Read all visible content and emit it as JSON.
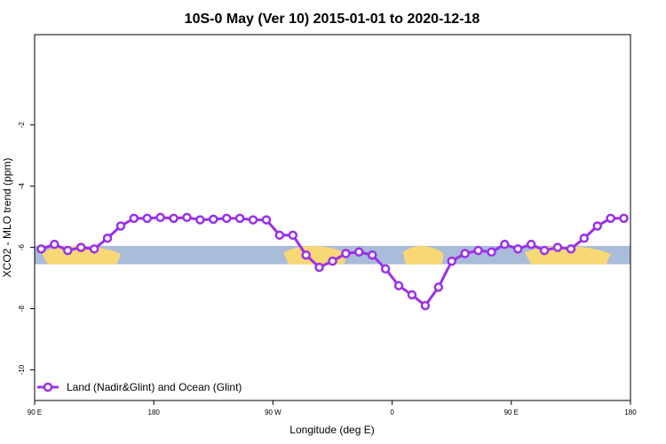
{
  "colors": {
    "series": "#9B30E8",
    "ocean": "#A9BCD9",
    "land": "#F8D775",
    "axis": "#000000"
  },
  "chart_data": {
    "type": "line",
    "title": "10S-0 May (Ver 10)   2015-01-01 to 2020-12-18",
    "xlabel": "Longitude (deg E)",
    "ylabel": "XCO2 - MLO trend (ppm)",
    "xlim": [
      90,
      540
    ],
    "ylim": [
      -11,
      0.95
    ],
    "x_ticks": [
      {
        "value": 90,
        "label": "90 E"
      },
      {
        "value": 180,
        "label": "180"
      },
      {
        "value": 270,
        "label": "90 W"
      },
      {
        "value": 360,
        "label": "0"
      },
      {
        "value": 450,
        "label": "90 E"
      },
      {
        "value": 540,
        "label": "180"
      }
    ],
    "y_ticks": [
      {
        "value": -2,
        "label": "-2"
      },
      {
        "value": -4,
        "label": "-4"
      },
      {
        "value": -6,
        "label": "-6"
      },
      {
        "value": -8,
        "label": "-8"
      },
      {
        "value": -10,
        "label": "-10"
      }
    ],
    "background_band": {
      "ymin": -6.55,
      "ymax": -5.95,
      "description": "map strip 10S-0"
    },
    "land_segments": [
      [
        95,
        155
      ],
      [
        278,
        326
      ],
      [
        368,
        399
      ],
      [
        460,
        525
      ]
    ],
    "series": [
      {
        "name": "Land (Nadir&Glint) and Ocean (Glint)",
        "x": [
          95,
          105,
          115,
          125,
          135,
          145,
          155,
          165,
          175,
          185,
          195,
          205,
          215,
          225,
          235,
          245,
          255,
          265,
          275,
          285,
          295,
          305,
          315,
          325,
          335,
          345,
          355,
          365,
          375,
          385,
          395,
          405,
          415,
          425,
          435,
          445,
          455,
          465,
          475,
          485,
          495,
          505,
          515,
          525,
          535
        ],
        "values": [
          -6.05,
          -5.9,
          -6.1,
          -6.0,
          -6.05,
          -5.7,
          -5.3,
          -5.05,
          -5.05,
          -5.02,
          -5.05,
          -5.02,
          -5.1,
          -5.08,
          -5.05,
          -5.05,
          -5.1,
          -5.1,
          -5.6,
          -5.6,
          -6.25,
          -6.65,
          -6.45,
          -6.2,
          -6.15,
          -6.25,
          -6.7,
          -7.25,
          -7.55,
          -7.9,
          -7.3,
          -6.45,
          -6.2,
          -6.1,
          -6.15,
          -5.9,
          -6.05,
          -5.9,
          -6.1,
          -6.0,
          -6.05,
          -5.7,
          -5.3,
          -5.05,
          -5.05
        ]
      }
    ],
    "legend": {
      "position": "bottom-left",
      "entries": [
        "Land (Nadir&Glint) and Ocean (Glint)"
      ]
    }
  }
}
